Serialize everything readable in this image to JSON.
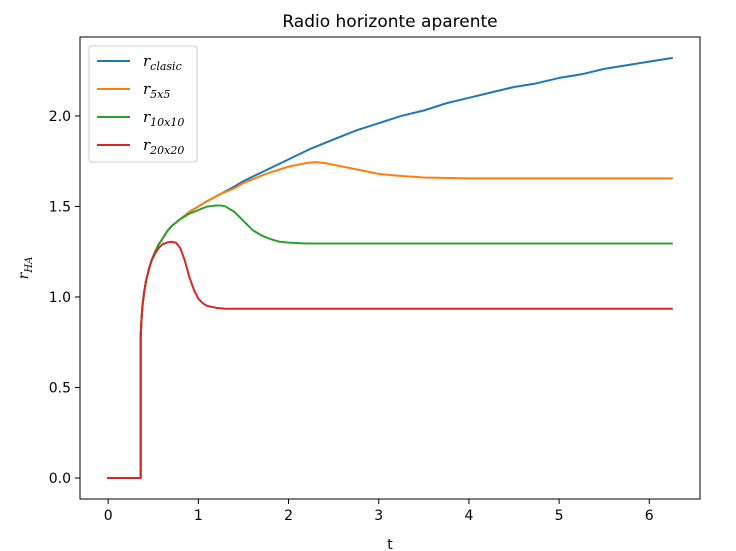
{
  "chart_data": {
    "type": "line",
    "title": "Radio horizonte aparente",
    "xlabel": "t",
    "ylabel": {
      "main": "r",
      "sub": "HA"
    },
    "xlim": [
      -0.3125,
      6.5625
    ],
    "ylim": [
      -0.116,
      2.436
    ],
    "xticks": [
      0,
      1,
      2,
      3,
      4,
      5,
      6
    ],
    "xtick_labels": [
      "0",
      "1",
      "2",
      "3",
      "4",
      "5",
      "6"
    ],
    "yticks": [
      0.0,
      0.5,
      1.0,
      1.5,
      2.0
    ],
    "ytick_labels": [
      "0.0",
      "0.5",
      "1.0",
      "1.5",
      "2.0"
    ],
    "grid": false,
    "legend_position": "top-left",
    "series": [
      {
        "name": "r_clasic",
        "legend_main": "r",
        "legend_sub": "clasic",
        "color": "#1f77b4",
        "x": [
          0,
          0.36,
          0.36,
          0.37,
          0.38,
          0.4,
          0.42,
          0.45,
          0.48,
          0.52,
          0.56,
          0.6,
          0.65,
          0.7,
          0.8,
          0.9,
          1.0,
          1.1,
          1.25,
          1.4,
          1.5,
          1.75,
          2.0,
          2.25,
          2.5,
          2.75,
          3.0,
          3.25,
          3.5,
          3.75,
          4.0,
          4.25,
          4.5,
          4.75,
          5.0,
          5.25,
          5.5,
          5.75,
          6.0,
          6.25
        ],
        "y": [
          0,
          0,
          0.78,
          0.88,
          0.95,
          1.03,
          1.09,
          1.15,
          1.2,
          1.25,
          1.29,
          1.32,
          1.36,
          1.39,
          1.43,
          1.47,
          1.5,
          1.53,
          1.57,
          1.61,
          1.64,
          1.7,
          1.76,
          1.82,
          1.87,
          1.92,
          1.96,
          2.0,
          2.03,
          2.07,
          2.1,
          2.13,
          2.16,
          2.18,
          2.21,
          2.23,
          2.26,
          2.28,
          2.3,
          2.32
        ]
      },
      {
        "name": "r_5x5",
        "legend_main": "r",
        "legend_sub": "5x5",
        "color": "#ff7f0e",
        "x": [
          0,
          0.36,
          0.36,
          0.37,
          0.38,
          0.4,
          0.42,
          0.45,
          0.48,
          0.52,
          0.56,
          0.6,
          0.65,
          0.7,
          0.8,
          0.9,
          1.0,
          1.1,
          1.25,
          1.4,
          1.5,
          1.75,
          2.0,
          2.2,
          2.3,
          2.4,
          2.6,
          2.8,
          3.0,
          3.2,
          3.5,
          4.0,
          4.5,
          5.0,
          6.25
        ],
        "y": [
          0,
          0,
          0.78,
          0.88,
          0.95,
          1.03,
          1.09,
          1.15,
          1.2,
          1.25,
          1.29,
          1.32,
          1.36,
          1.39,
          1.43,
          1.47,
          1.5,
          1.53,
          1.57,
          1.6,
          1.63,
          1.68,
          1.72,
          1.74,
          1.745,
          1.74,
          1.72,
          1.7,
          1.68,
          1.67,
          1.66,
          1.655,
          1.655,
          1.655,
          1.655
        ]
      },
      {
        "name": "r_10x10",
        "legend_main": "r",
        "legend_sub": "10x10",
        "color": "#2ca02c",
        "x": [
          0,
          0.36,
          0.36,
          0.37,
          0.38,
          0.4,
          0.42,
          0.45,
          0.48,
          0.52,
          0.56,
          0.6,
          0.65,
          0.7,
          0.8,
          0.9,
          1.0,
          1.1,
          1.2,
          1.25,
          1.3,
          1.4,
          1.5,
          1.6,
          1.7,
          1.8,
          1.9,
          2.0,
          2.2,
          2.5,
          3.0,
          6.25
        ],
        "y": [
          0,
          0,
          0.78,
          0.88,
          0.95,
          1.03,
          1.09,
          1.15,
          1.2,
          1.25,
          1.29,
          1.32,
          1.36,
          1.39,
          1.43,
          1.46,
          1.48,
          1.5,
          1.505,
          1.505,
          1.5,
          1.47,
          1.42,
          1.37,
          1.34,
          1.32,
          1.305,
          1.3,
          1.295,
          1.295,
          1.295,
          1.295
        ]
      },
      {
        "name": "r_20x20",
        "legend_main": "r",
        "legend_sub": "20x20",
        "color": "#d62728",
        "x": [
          0,
          0.36,
          0.36,
          0.37,
          0.38,
          0.4,
          0.42,
          0.45,
          0.48,
          0.52,
          0.56,
          0.6,
          0.65,
          0.7,
          0.75,
          0.8,
          0.85,
          0.9,
          0.95,
          1.0,
          1.05,
          1.1,
          1.2,
          1.3,
          1.5,
          2.0,
          6.25
        ],
        "y": [
          0,
          0,
          0.78,
          0.88,
          0.95,
          1.03,
          1.09,
          1.15,
          1.2,
          1.24,
          1.27,
          1.29,
          1.3,
          1.305,
          1.3,
          1.27,
          1.2,
          1.11,
          1.04,
          0.99,
          0.965,
          0.95,
          0.94,
          0.935,
          0.935,
          0.935,
          0.935
        ]
      }
    ]
  }
}
